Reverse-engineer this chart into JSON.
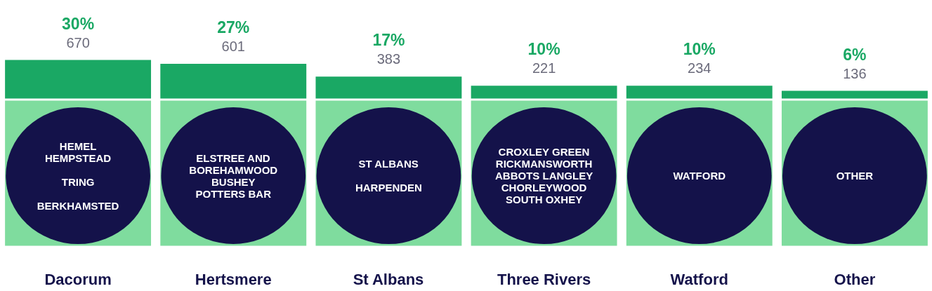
{
  "chart_data": {
    "type": "bar",
    "categories": [
      "Dacorum",
      "Hertsmere",
      "St Albans",
      "Three Rivers",
      "Watford",
      "Other"
    ],
    "values": [
      30,
      27,
      17,
      10,
      10,
      6
    ],
    "color": "#1aa864",
    "value_labels": [
      "30%",
      "27%",
      "17%",
      "10%",
      "10%",
      "6%"
    ],
    "annotations": [
      {
        "text": "670",
        "x": "Dacorum",
        "y": 30
      },
      {
        "text": "601",
        "x": "Hertsmere",
        "y": 27
      },
      {
        "text": "383",
        "x": "St Albans",
        "y": 17
      },
      {
        "text": "221",
        "x": "Three Rivers",
        "y": 10
      },
      {
        "text": "234",
        "x": "Watford",
        "y": 10
      },
      {
        "text": "136",
        "x": "Other",
        "y": 6
      },
      "HEMEL\nHEMPSTEAD\n\nTRING\n\nBERKHAMSTED",
      "ELSTREE AND\nBOREHAMWOOD\nBUSHEY\nPOTTERS BAR",
      "ST ALBANS\n\nHARPENDEN",
      "CROXLEY GREEN\nRICKMANSWORTH\nABBOTS LANGLEY\nCHORLEYWOOD\nSOUTH OXHEY",
      "WATFORD",
      "OTHER"
    ]
  }
}
